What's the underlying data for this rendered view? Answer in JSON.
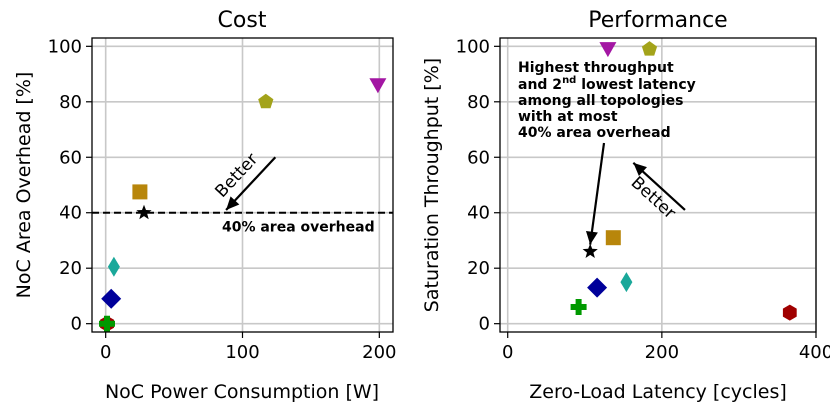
{
  "chart_data": [
    {
      "type": "scatter",
      "title": "Cost",
      "xlabel": "NoC Power Consumption [W]",
      "ylabel": "NoC Area Overhead [%]",
      "xlim": [
        -10,
        210
      ],
      "ylim": [
        -3,
        103
      ],
      "xticks": [
        0,
        100,
        200
      ],
      "yticks": [
        0,
        20,
        40,
        60,
        80,
        100
      ],
      "grid": true,
      "points": [
        {
          "x": 1,
          "y": 0,
          "marker": "hexagon",
          "color": "#a00000"
        },
        {
          "x": 1,
          "y": 0,
          "marker": "plus",
          "color": "#009900"
        },
        {
          "x": 4,
          "y": 9,
          "marker": "diamond",
          "color": "#00009a"
        },
        {
          "x": 6,
          "y": 20.5,
          "marker": "thin-diamond",
          "color": "#1aa89a"
        },
        {
          "x": 25,
          "y": 47.5,
          "marker": "square",
          "color": "#b8860b"
        },
        {
          "x": 28,
          "y": 40,
          "marker": "star",
          "color": "#000000"
        },
        {
          "x": 117,
          "y": 80,
          "marker": "pentagon",
          "color": "#a3a31a"
        },
        {
          "x": 199,
          "y": 86,
          "marker": "triangle-down",
          "color": "#a316a3"
        }
      ],
      "reference_line": {
        "y": 40,
        "style": "dashed",
        "label": "40% area overhead"
      },
      "arrow_annotation": {
        "text": "Better",
        "from": [
          124,
          60
        ],
        "to": [
          88,
          41
        ]
      }
    },
    {
      "type": "scatter",
      "title": "Performance",
      "xlabel": "Zero-Load Latency [cycles]",
      "ylabel": "Saturation Throughput [%]",
      "xlim": [
        -10,
        400
      ],
      "ylim": [
        -3,
        103
      ],
      "xticks": [
        0,
        200,
        400
      ],
      "yticks": [
        0,
        20,
        40,
        60,
        80,
        100
      ],
      "grid": true,
      "points": [
        {
          "x": 366,
          "y": 4,
          "marker": "hexagon",
          "color": "#a00000"
        },
        {
          "x": 92,
          "y": 6,
          "marker": "plus",
          "color": "#009900"
        },
        {
          "x": 116,
          "y": 13,
          "marker": "diamond",
          "color": "#00009a"
        },
        {
          "x": 154,
          "y": 15,
          "marker": "thin-diamond",
          "color": "#1aa89a"
        },
        {
          "x": 137,
          "y": 31,
          "marker": "square",
          "color": "#b8860b"
        },
        {
          "x": 107,
          "y": 26,
          "marker": "star",
          "color": "#000000"
        },
        {
          "x": 184,
          "y": 99,
          "marker": "pentagon",
          "color": "#a3a31a"
        },
        {
          "x": 130,
          "y": 99,
          "marker": "triangle-down",
          "color": "#a316a3"
        }
      ],
      "arrow_annotation": {
        "text": "Better",
        "from": [
          230,
          41
        ],
        "to": [
          163,
          58
        ]
      },
      "text_annotation": {
        "line1": "Highest throughput",
        "line2_pre": "and 2",
        "line2_sup": "nd",
        "line2_post": " lowest latency",
        "line3": "among all topologies",
        "line4": "with at most",
        "line5": "40% area overhead",
        "points_to": [
          107,
          28.5
        ]
      }
    }
  ]
}
